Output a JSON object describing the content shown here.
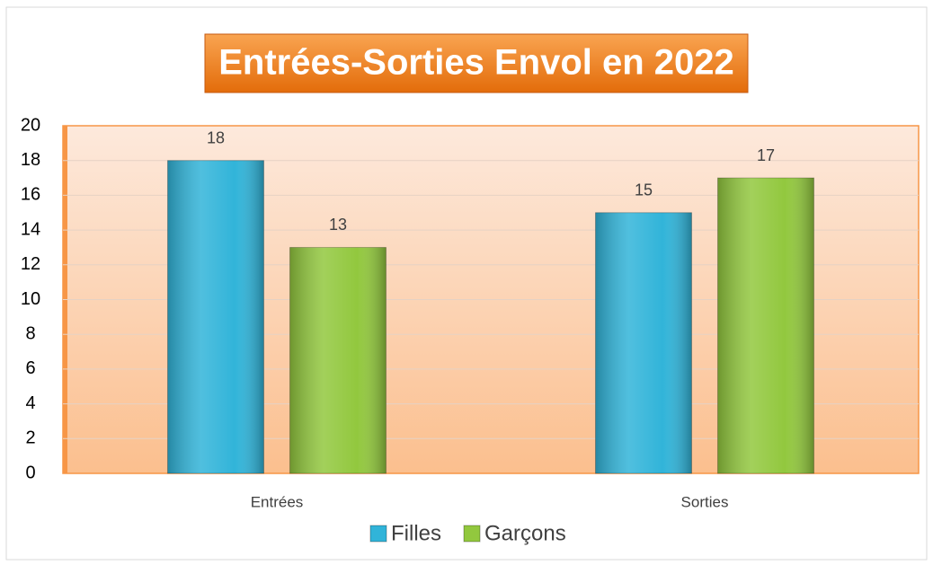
{
  "chart_data": {
    "type": "bar",
    "title": "Entrées-Sorties Envol en 2022",
    "categories": [
      "Entrées",
      "Sorties"
    ],
    "series": [
      {
        "name": "Filles",
        "color": "#31b4d9",
        "values": [
          18,
          15
        ]
      },
      {
        "name": "Garçons",
        "color": "#92c83e",
        "values": [
          13,
          17
        ]
      }
    ],
    "ylim": [
      0,
      20
    ],
    "yticks": [
      0,
      2,
      4,
      6,
      8,
      10,
      12,
      14,
      16,
      18,
      20
    ],
    "grid": true,
    "legend": "bottom"
  }
}
